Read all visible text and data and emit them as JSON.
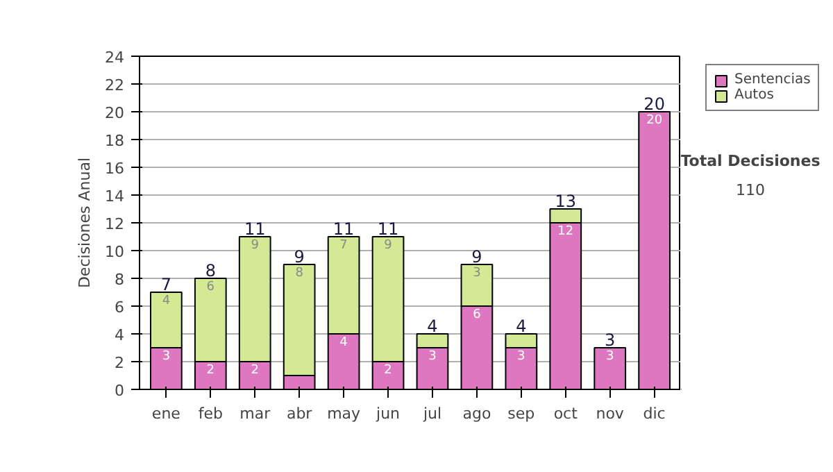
{
  "chart_data": {
    "type": "bar",
    "stacked": true,
    "ylabel": "Decisiones Anual",
    "categories": [
      "ene",
      "feb",
      "mar",
      "abr",
      "may",
      "jun",
      "jul",
      "ago",
      "sep",
      "oct",
      "nov",
      "dic"
    ],
    "series": [
      {
        "name": "Sentencias",
        "color": "#dd78c0",
        "values": [
          3,
          2,
          2,
          1,
          4,
          2,
          3,
          6,
          3,
          12,
          3,
          20
        ],
        "value_labels": [
          "3",
          "2",
          "2",
          null,
          "4",
          "2",
          "3",
          "6",
          "3",
          "12",
          "3",
          "20"
        ]
      },
      {
        "name": "Autos",
        "color": "#d4e993",
        "values": [
          4,
          6,
          9,
          8,
          7,
          9,
          1,
          3,
          1,
          1,
          0,
          0
        ],
        "value_labels": [
          "4",
          "6",
          "9",
          "8",
          "7",
          "9",
          null,
          "3",
          null,
          null,
          null,
          null
        ]
      }
    ],
    "totals": [
      "7",
      "8",
      "11",
      "9",
      "11",
      "11",
      "4",
      "9",
      "4",
      "13",
      "3",
      "20"
    ],
    "ylim": [
      0,
      24
    ],
    "yticks": [
      0,
      2,
      4,
      6,
      8,
      10,
      12,
      14,
      16,
      18,
      20,
      22,
      24
    ],
    "grid": "y",
    "legend": "right",
    "annotations": [
      "Total Decisiones",
      "110"
    ]
  }
}
